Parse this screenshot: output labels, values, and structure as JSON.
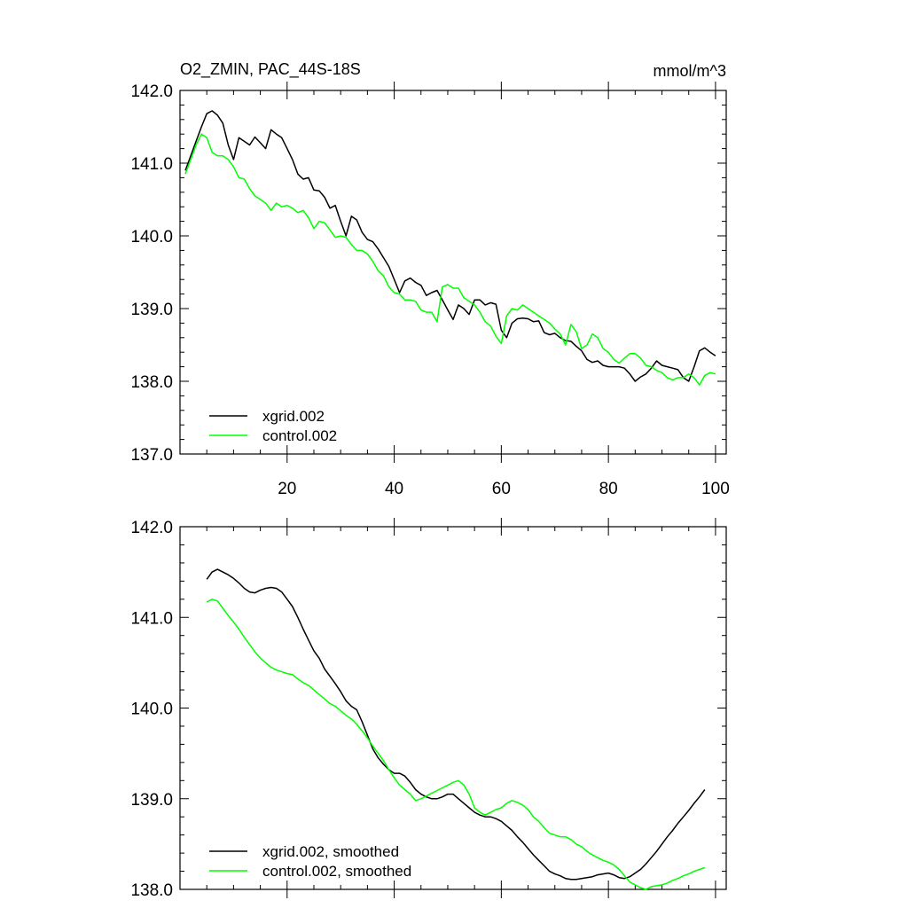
{
  "chart_data": [
    {
      "type": "line",
      "title": "O2_ZMIN, PAC_44S-18S",
      "units": "mmol/m^3",
      "xlabel": "",
      "ylabel": "",
      "xlim": [
        0,
        102
      ],
      "ylim": [
        137.0,
        142.0
      ],
      "x_ticks": [
        "20",
        "40",
        "60",
        "80",
        "100"
      ],
      "y_ticks": [
        "137.0",
        "138.0",
        "139.0",
        "140.0",
        "141.0",
        "142.0"
      ],
      "legend_position": "bottom-left",
      "series": [
        {
          "name": "xgrid.002",
          "color": "#000000",
          "x": [
            1,
            2,
            3,
            4,
            5,
            6,
            7,
            8,
            9,
            10,
            11,
            12,
            13,
            14,
            15,
            16,
            17,
            18,
            19,
            20,
            21,
            22,
            23,
            24,
            25,
            26,
            27,
            28,
            29,
            30,
            31,
            32,
            33,
            34,
            35,
            36,
            37,
            38,
            39,
            40,
            41,
            42,
            43,
            44,
            45,
            46,
            47,
            48,
            49,
            50,
            51,
            52,
            53,
            54,
            55,
            56,
            57,
            58,
            59,
            60,
            61,
            62,
            63,
            64,
            65,
            66,
            67,
            68,
            69,
            70,
            71,
            72,
            73,
            74,
            75,
            76,
            77,
            78,
            79,
            80,
            81,
            82,
            83,
            84,
            85,
            86,
            87,
            88,
            89,
            90,
            91,
            92,
            93,
            94,
            95,
            96,
            97,
            98,
            99,
            100
          ],
          "values": [
            140.9,
            141.1,
            141.3,
            141.5,
            141.68,
            141.72,
            141.66,
            141.55,
            141.25,
            141.05,
            141.35,
            141.3,
            141.25,
            141.36,
            141.28,
            141.2,
            141.46,
            141.4,
            141.35,
            141.2,
            141.05,
            140.85,
            140.78,
            140.8,
            140.63,
            140.62,
            140.53,
            140.38,
            140.42,
            140.2,
            140.0,
            140.27,
            140.22,
            140.05,
            139.95,
            139.92,
            139.82,
            139.7,
            139.58,
            139.4,
            139.22,
            139.38,
            139.42,
            139.36,
            139.32,
            139.18,
            139.22,
            139.25,
            139.12,
            138.98,
            138.85,
            139.05,
            139.0,
            138.92,
            139.12,
            139.12,
            139.05,
            139.08,
            139.06,
            138.7,
            138.6,
            138.8,
            138.86,
            138.87,
            138.86,
            138.82,
            138.83,
            138.67,
            138.64,
            138.66,
            138.6,
            138.56,
            138.55,
            138.48,
            138.42,
            138.3,
            138.26,
            138.28,
            138.22,
            138.2,
            138.2,
            138.2,
            138.18,
            138.1,
            138.0,
            138.06,
            138.1,
            138.18,
            138.28,
            138.22,
            138.2,
            138.18,
            138.16,
            138.05,
            138.0,
            138.2,
            138.42,
            138.46,
            138.4,
            138.35
          ],
          "legend_label": "xgrid.002"
        },
        {
          "name": "control.002",
          "color": "#00ff00",
          "x": [
            1,
            2,
            3,
            4,
            5,
            6,
            7,
            8,
            9,
            10,
            11,
            12,
            13,
            14,
            15,
            16,
            17,
            18,
            19,
            20,
            21,
            22,
            23,
            24,
            25,
            26,
            27,
            28,
            29,
            30,
            31,
            32,
            33,
            34,
            35,
            36,
            37,
            38,
            39,
            40,
            41,
            42,
            43,
            44,
            45,
            46,
            47,
            48,
            49,
            50,
            51,
            52,
            53,
            54,
            55,
            56,
            57,
            58,
            59,
            60,
            61,
            62,
            63,
            64,
            65,
            66,
            67,
            68,
            69,
            70,
            71,
            72,
            73,
            74,
            75,
            76,
            77,
            78,
            79,
            80,
            81,
            82,
            83,
            84,
            85,
            86,
            87,
            88,
            89,
            90,
            91,
            92,
            93,
            94,
            95,
            96,
            97,
            98,
            99,
            100
          ],
          "values": [
            140.85,
            141.05,
            141.25,
            141.4,
            141.35,
            141.15,
            141.1,
            141.1,
            141.05,
            140.95,
            140.8,
            140.78,
            140.65,
            140.55,
            140.5,
            140.45,
            140.35,
            140.45,
            140.4,
            140.42,
            140.38,
            140.32,
            140.35,
            140.25,
            140.1,
            140.2,
            140.18,
            140.08,
            139.98,
            140.0,
            139.98,
            139.88,
            139.8,
            139.8,
            139.75,
            139.65,
            139.52,
            139.45,
            139.3,
            139.22,
            139.2,
            139.12,
            139.12,
            139.1,
            138.98,
            138.95,
            138.95,
            138.82,
            139.3,
            139.33,
            139.28,
            139.28,
            139.15,
            139.1,
            139.05,
            138.95,
            138.82,
            138.76,
            138.62,
            138.52,
            138.9,
            139.0,
            138.98,
            139.05,
            139.0,
            138.95,
            138.9,
            138.85,
            138.8,
            138.72,
            138.65,
            138.5,
            138.78,
            138.68,
            138.45,
            138.5,
            138.65,
            138.6,
            138.45,
            138.4,
            138.3,
            138.25,
            138.32,
            138.38,
            138.38,
            138.32,
            138.22,
            138.2,
            138.15,
            138.12,
            138.05,
            138.02,
            138.05,
            138.05,
            138.1,
            138.05,
            137.95,
            138.08,
            138.12,
            138.1
          ],
          "legend_label": "control.002"
        }
      ]
    },
    {
      "type": "line",
      "title": "",
      "xlabel": "",
      "ylabel": "",
      "xlim": [
        0,
        102
      ],
      "ylim": [
        138.0,
        142.0
      ],
      "y_ticks": [
        "138.0",
        "139.0",
        "140.0",
        "141.0",
        "142.0"
      ],
      "legend_position": "bottom-left",
      "series": [
        {
          "name": "xgrid.002, smoothed",
          "color": "#000000",
          "x": [
            5,
            6,
            7,
            8,
            9,
            10,
            11,
            12,
            13,
            14,
            15,
            16,
            17,
            18,
            19,
            20,
            21,
            22,
            23,
            24,
            25,
            26,
            27,
            28,
            29,
            30,
            31,
            32,
            33,
            34,
            35,
            36,
            37,
            38,
            39,
            40,
            41,
            42,
            43,
            44,
            45,
            46,
            47,
            48,
            49,
            50,
            51,
            52,
            53,
            54,
            55,
            56,
            57,
            58,
            59,
            60,
            61,
            62,
            63,
            64,
            65,
            66,
            67,
            68,
            69,
            70,
            71,
            72,
            73,
            74,
            75,
            76,
            77,
            78,
            79,
            80,
            81,
            82,
            83,
            84,
            85,
            86,
            87,
            88,
            89,
            90,
            91,
            92,
            93,
            94,
            95,
            96,
            97,
            98
          ],
          "values": [
            141.42,
            141.5,
            141.53,
            141.5,
            141.47,
            141.43,
            141.38,
            141.32,
            141.28,
            141.27,
            141.3,
            141.32,
            141.33,
            141.32,
            141.28,
            141.2,
            141.12,
            141.0,
            140.87,
            140.75,
            140.63,
            140.55,
            140.43,
            140.35,
            140.27,
            140.18,
            140.08,
            140.02,
            139.98,
            139.85,
            139.7,
            139.55,
            139.45,
            139.38,
            139.32,
            139.28,
            139.28,
            139.25,
            139.18,
            139.1,
            139.05,
            139.02,
            139.0,
            139.0,
            139.02,
            139.05,
            139.05,
            139.0,
            138.95,
            138.9,
            138.85,
            138.82,
            138.8,
            138.8,
            138.78,
            138.75,
            138.7,
            138.65,
            138.58,
            138.52,
            138.45,
            138.38,
            138.32,
            138.26,
            138.2,
            138.17,
            138.15,
            138.12,
            138.11,
            138.11,
            138.12,
            138.13,
            138.14,
            138.16,
            138.17,
            138.18,
            138.16,
            138.13,
            138.12,
            138.14,
            138.18,
            138.22,
            138.28,
            138.35,
            138.42,
            138.5,
            138.58,
            138.65,
            138.73,
            138.8,
            138.87,
            138.95,
            139.02,
            139.1
          ],
          "legend_label": "xgrid.002, smoothed"
        },
        {
          "name": "control.002, smoothed",
          "color": "#00ff00",
          "x": [
            5,
            6,
            7,
            8,
            9,
            10,
            11,
            12,
            13,
            14,
            15,
            16,
            17,
            18,
            19,
            20,
            21,
            22,
            23,
            24,
            25,
            26,
            27,
            28,
            29,
            30,
            31,
            32,
            33,
            34,
            35,
            36,
            37,
            38,
            39,
            40,
            41,
            42,
            43,
            44,
            45,
            46,
            47,
            48,
            49,
            50,
            51,
            52,
            53,
            54,
            55,
            56,
            57,
            58,
            59,
            60,
            61,
            62,
            63,
            64,
            65,
            66,
            67,
            68,
            69,
            70,
            71,
            72,
            73,
            74,
            75,
            76,
            77,
            78,
            79,
            80,
            81,
            82,
            83,
            84,
            85,
            86,
            87,
            88,
            89,
            90,
            91,
            92,
            93,
            94,
            95,
            96,
            97,
            98
          ],
          "values": [
            141.17,
            141.2,
            141.18,
            141.1,
            141.02,
            140.95,
            140.87,
            140.78,
            140.7,
            140.62,
            140.55,
            140.5,
            140.45,
            140.42,
            140.4,
            140.38,
            140.37,
            140.32,
            140.28,
            140.25,
            140.2,
            140.15,
            140.1,
            140.05,
            140.02,
            139.97,
            139.92,
            139.88,
            139.82,
            139.75,
            139.67,
            139.58,
            139.5,
            139.42,
            139.32,
            139.23,
            139.15,
            139.1,
            139.05,
            138.98,
            139.0,
            139.03,
            139.06,
            139.09,
            139.12,
            139.15,
            139.18,
            139.2,
            139.15,
            139.05,
            138.9,
            138.85,
            138.82,
            138.85,
            138.88,
            138.9,
            138.95,
            138.98,
            138.96,
            138.93,
            138.88,
            138.8,
            138.75,
            138.68,
            138.62,
            138.6,
            138.58,
            138.58,
            138.55,
            138.5,
            138.47,
            138.42,
            138.38,
            138.35,
            138.32,
            138.3,
            138.27,
            138.22,
            138.15,
            138.08,
            138.05,
            138.02,
            138.0,
            138.03,
            138.04,
            138.05,
            138.07,
            138.1,
            138.12,
            138.15,
            138.17,
            138.2,
            138.22,
            138.24
          ],
          "legend_label": "control.002, smoothed"
        }
      ]
    }
  ]
}
